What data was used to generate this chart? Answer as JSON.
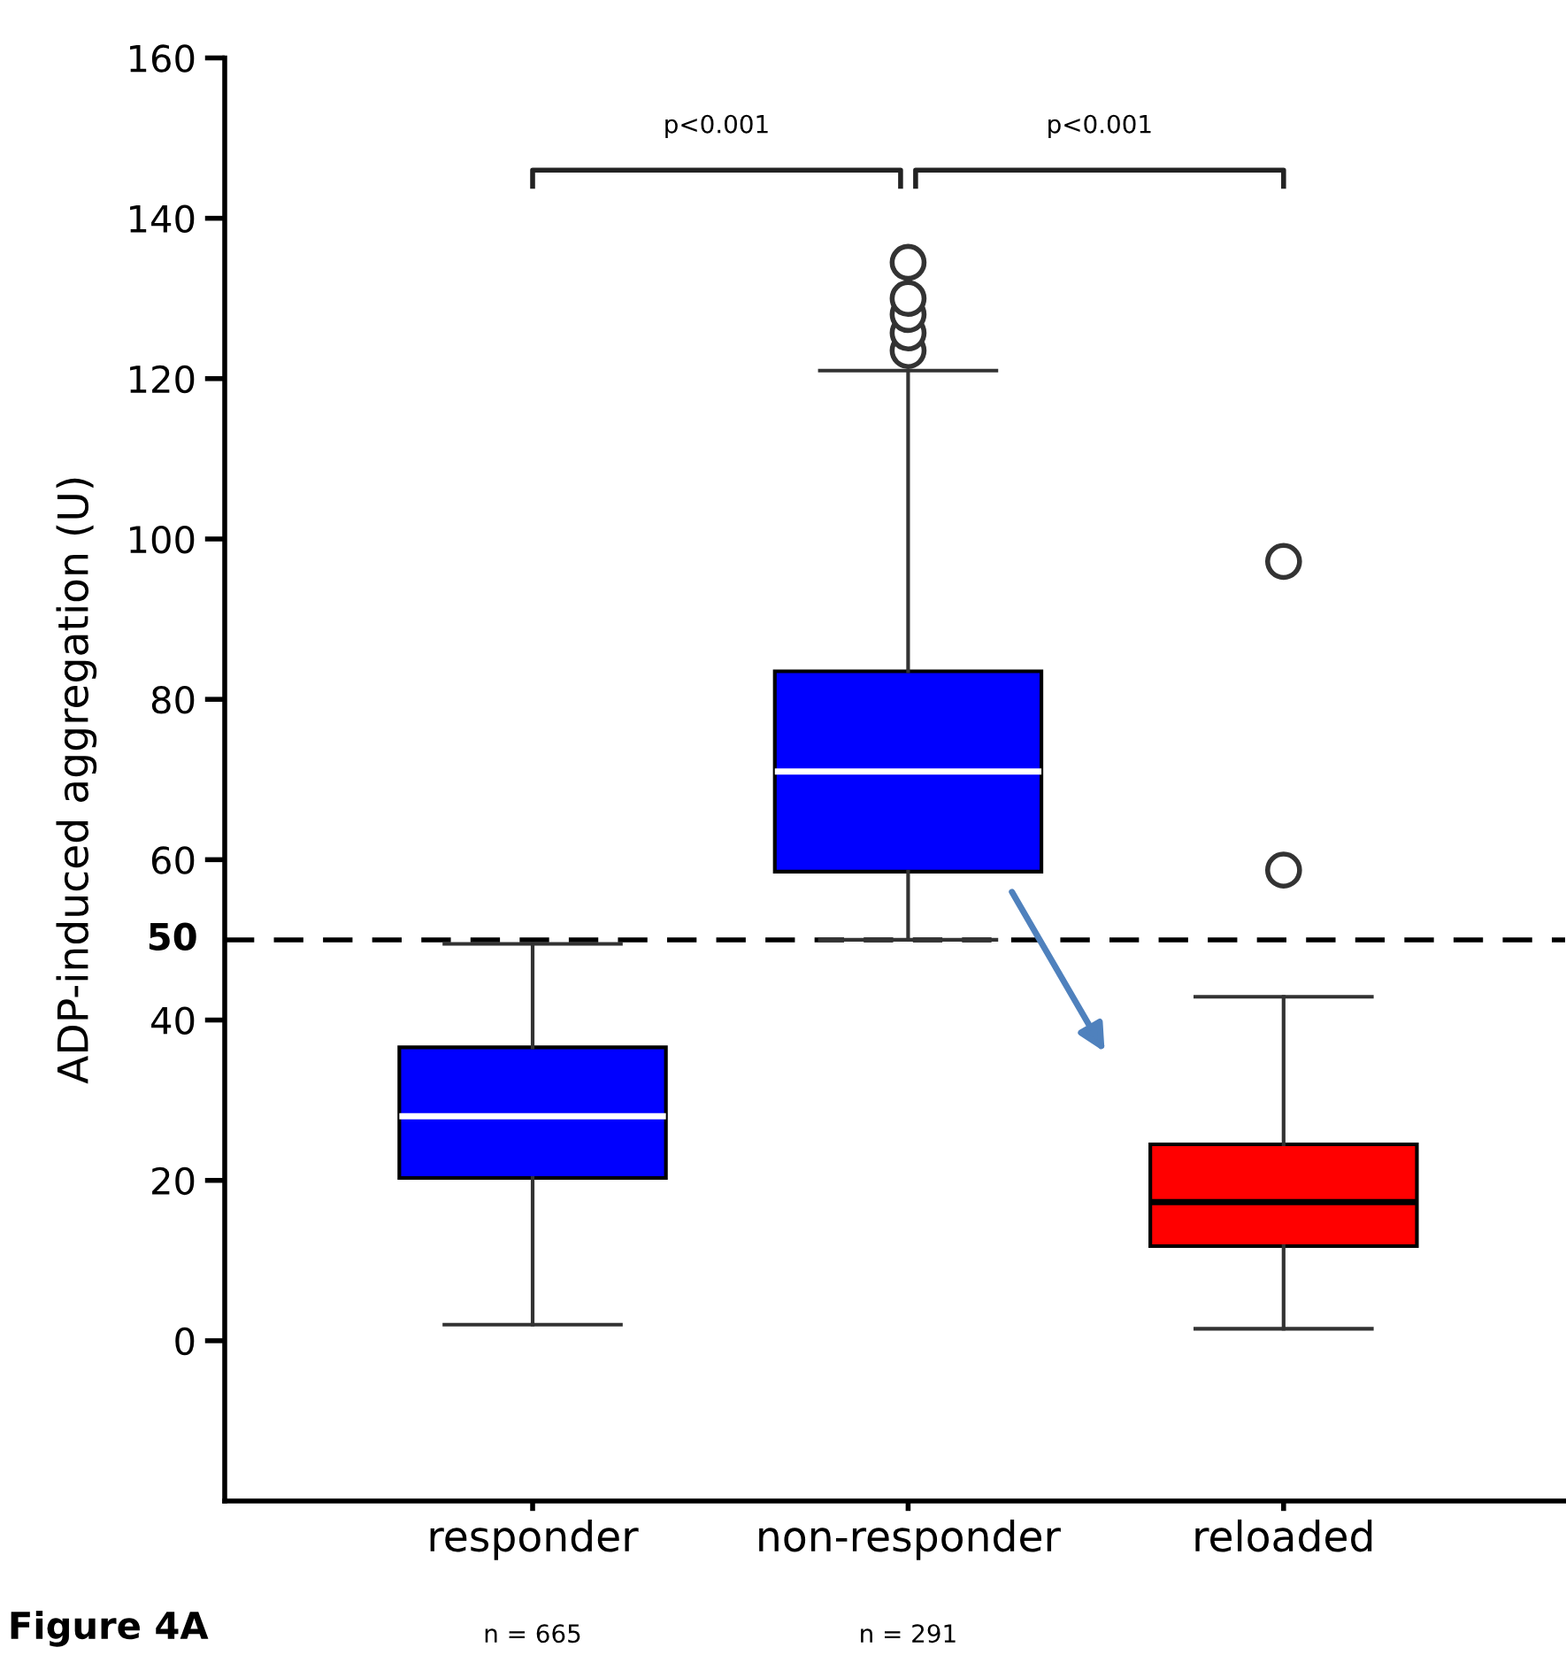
{
  "chart_data": {
    "type": "box",
    "title": "Figure 4A",
    "ylabel": "ADP-induced aggregation (U)",
    "categories": [
      "responder",
      "non-responder",
      "reloaded"
    ],
    "colors": [
      "#0000ff",
      "#0000ff",
      "#ff0000"
    ],
    "boxes": [
      {
        "low": 2,
        "q1": 20.3,
        "median": 28,
        "q3": 36.6,
        "high": 49.5
      },
      {
        "low": 50,
        "q1": 58.5,
        "median": 71,
        "q3": 83.5,
        "high": 121,
        "outliers": [
          123.5,
          125.7,
          128,
          130,
          134.5
        ]
      },
      {
        "low": 1.5,
        "q1": 11.8,
        "median": 17.3,
        "q3": 24.5,
        "high": 42.9,
        "outliers": [
          58.7,
          97.2
        ]
      }
    ],
    "ylim": [
      -20,
      160
    ],
    "yticks": [
      0,
      20,
      40,
      60,
      80,
      100,
      120,
      140,
      160
    ],
    "ref_lines": [
      {
        "axis": "y",
        "value": 50,
        "label": "50",
        "line_style": "dashed",
        "color": "#000000"
      }
    ],
    "annotations": [
      "p<0.001",
      "p<0.001",
      "n = 665",
      "n = 291"
    ],
    "grid": false
  }
}
